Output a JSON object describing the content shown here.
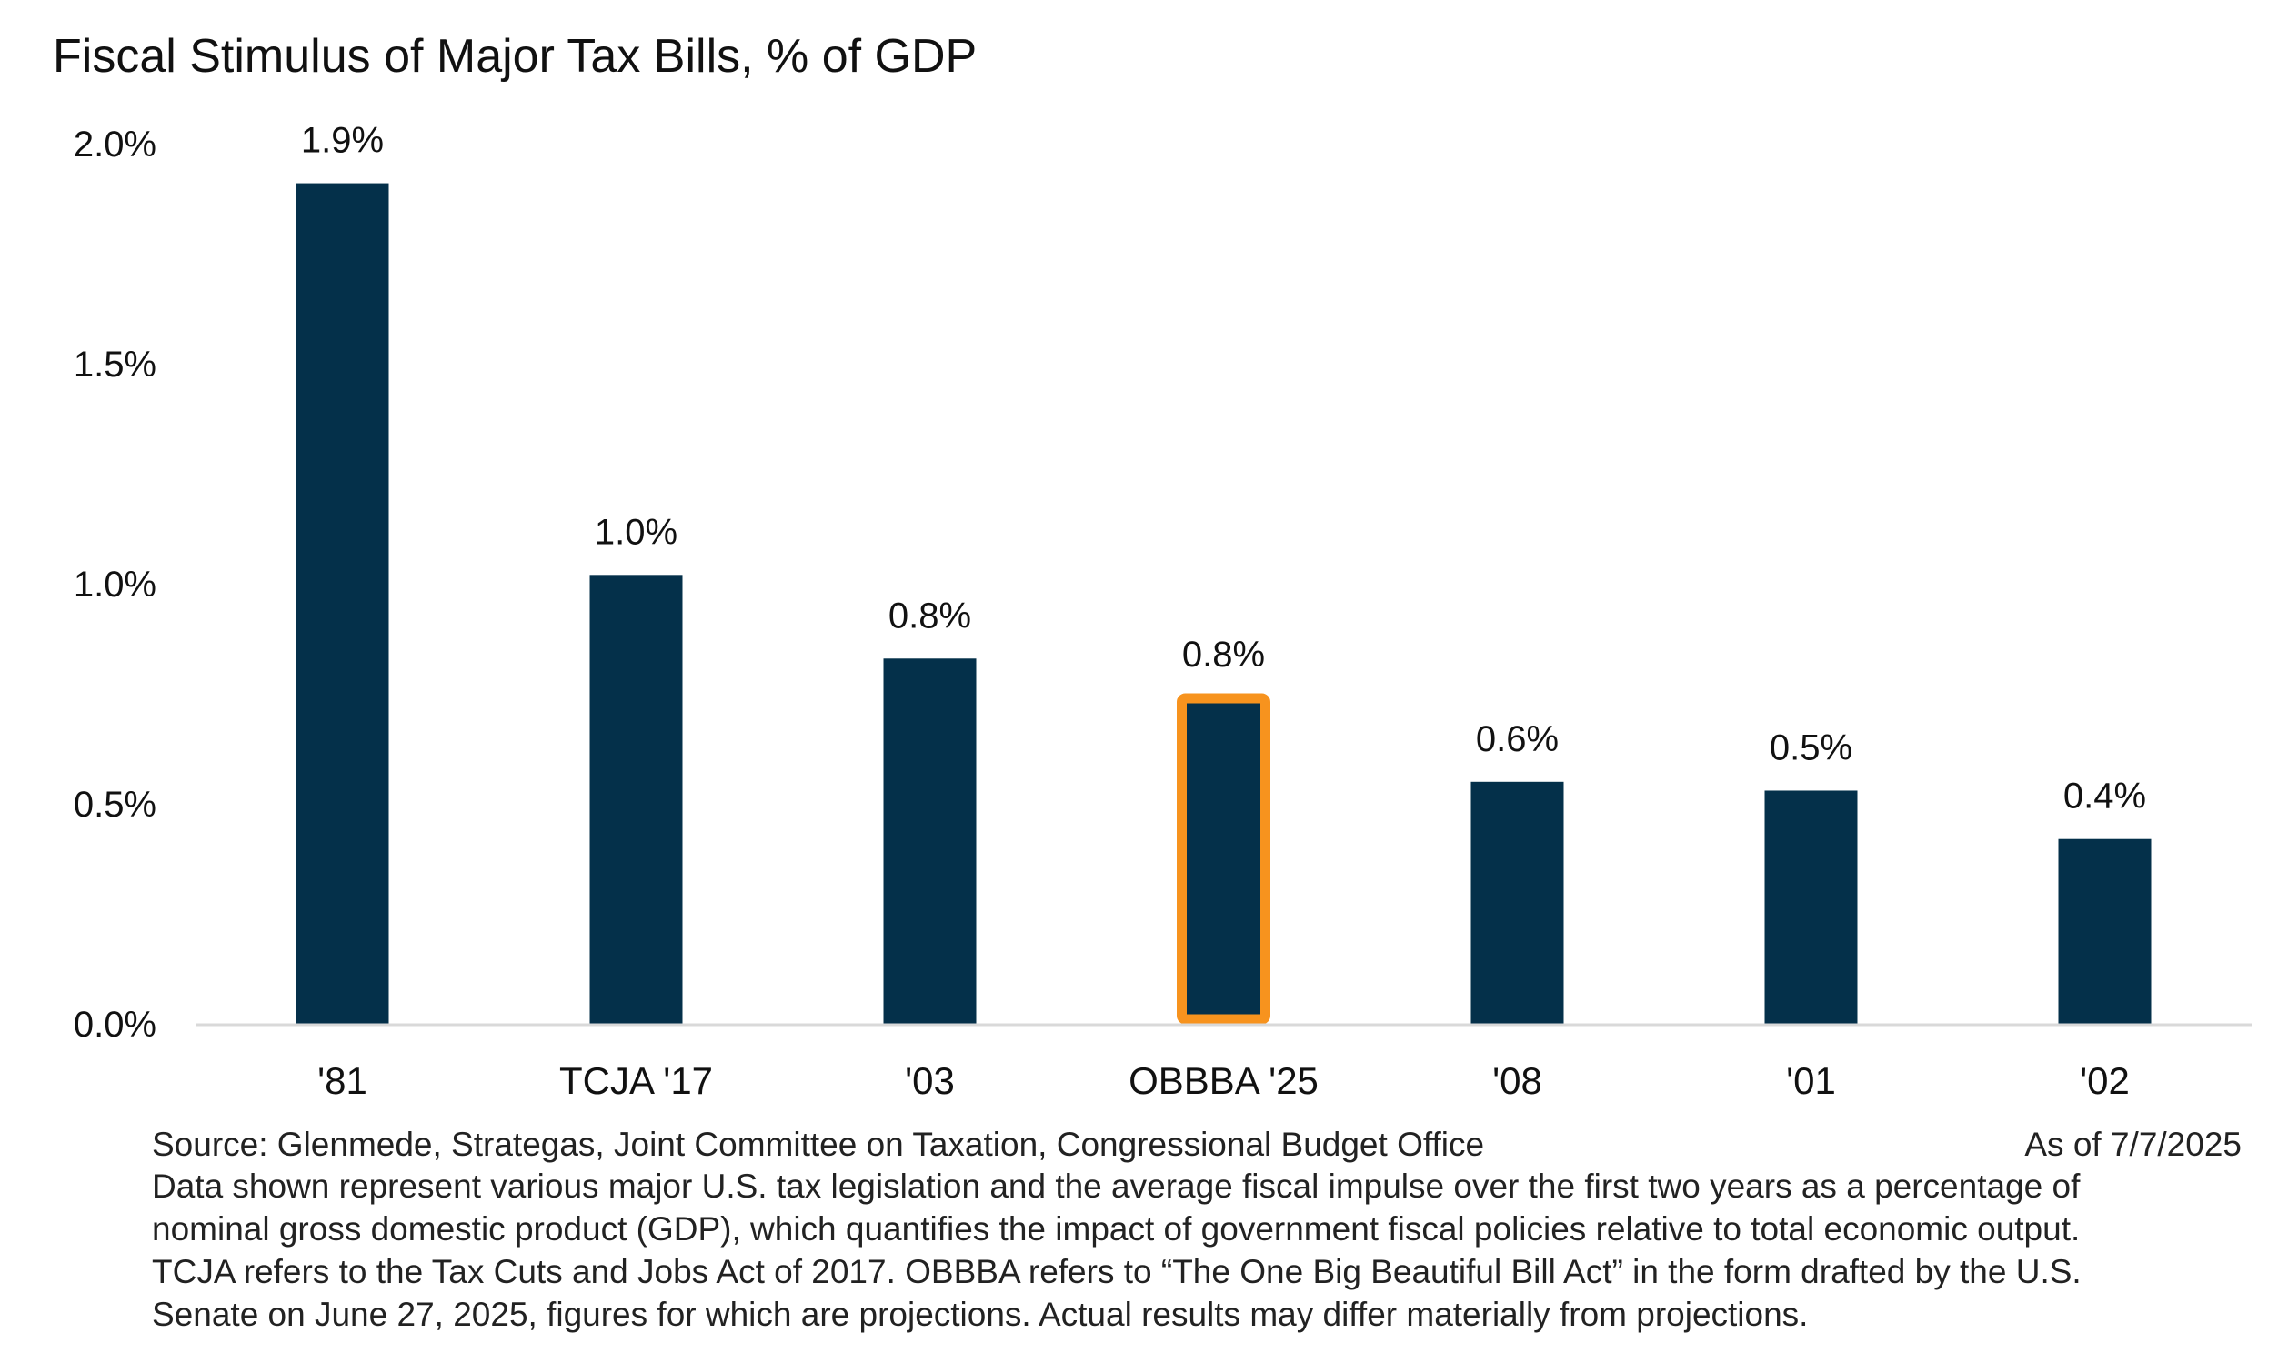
{
  "chart_data": {
    "type": "bar",
    "title": "Fiscal Stimulus of Major Tax Bills, % of GDP",
    "categories": [
      "'81",
      "TCJA '17",
      "'03",
      "OBBBA '25",
      "'08",
      "'01",
      "'02"
    ],
    "values": [
      1.91,
      1.02,
      0.83,
      0.75,
      0.55,
      0.53,
      0.42
    ],
    "data_labels": [
      "1.9%",
      "1.0%",
      "0.8%",
      "0.8%",
      "0.6%",
      "0.5%",
      "0.4%"
    ],
    "highlight_index": 3,
    "y_ticks": [
      0.0,
      0.5,
      1.0,
      1.5,
      2.0
    ],
    "y_tick_labels": [
      "0.0%",
      "0.5%",
      "1.0%",
      "1.5%",
      "2.0%"
    ],
    "ylim": [
      0,
      2.0
    ],
    "xlabel": "",
    "ylabel": "",
    "grid": false,
    "legend": "none",
    "colors": {
      "bar": "#04304a",
      "highlight_outline": "#f7931e",
      "axis": "#d9d9d9"
    }
  },
  "footer": {
    "source": "Source: Glenmede, Strategas, Joint Committee on Taxation, Congressional Budget Office",
    "as_of": "As of 7/7/2025",
    "note_lines": [
      "Data shown represent various major U.S. tax legislation and the average fiscal impulse over the first two years as a percentage of",
      "nominal gross domestic product (GDP), which quantifies the impact of government fiscal policies relative to total economic output.",
      "TCJA refers to the Tax Cuts and Jobs Act of 2017. OBBBA refers to “The One Big Beautiful Bill Act” in the form drafted by the U.S.",
      "Senate on June 27, 2025, figures for which are projections. Actual results may differ materially from projections."
    ]
  }
}
